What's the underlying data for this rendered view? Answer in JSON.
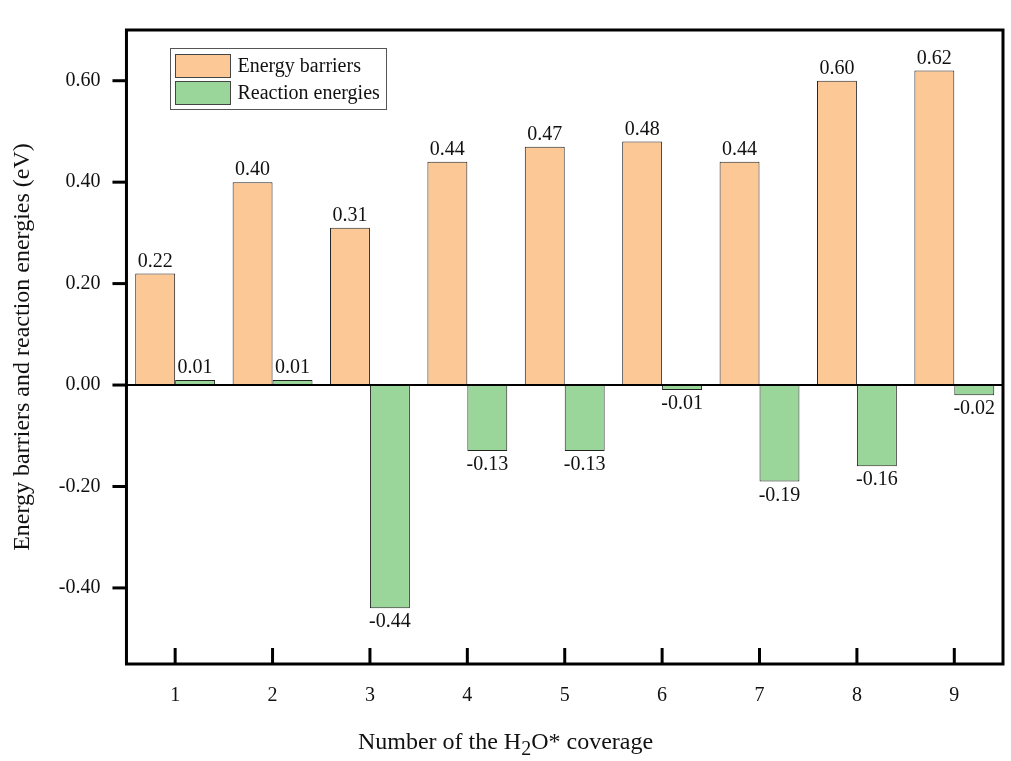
{
  "chart_data": {
    "type": "bar",
    "xlabel": "Number of the H$_{2}$O* coverage",
    "ylabel": "Energy barriers and reaction energies (eV)",
    "categories": [
      "1",
      "2",
      "3",
      "4",
      "5",
      "6",
      "7",
      "8",
      "9"
    ],
    "series": [
      {
        "name": "Energy barriers",
        "color": "#fcc896",
        "values": [
          0.22,
          0.4,
          0.31,
          0.44,
          0.47,
          0.48,
          0.44,
          0.6,
          0.62
        ],
        "value_labels": [
          "0.22",
          "0.40",
          "0.31",
          "0.44",
          "0.47",
          "0.48",
          "0.44",
          "0.60",
          "0.62"
        ]
      },
      {
        "name": "Reaction energies",
        "color": "#9ad69a",
        "values": [
          0.01,
          0.01,
          -0.44,
          -0.13,
          -0.13,
          -0.01,
          -0.19,
          -0.16,
          -0.02
        ],
        "value_labels": [
          "0.01",
          "0.01",
          "-0.44",
          "-0.13",
          "-0.13",
          "-0.01",
          "-0.19",
          "-0.16",
          "-0.02"
        ]
      }
    ],
    "ylim": [
      -0.55,
      0.7
    ],
    "yticks": [
      {
        "value": -0.4,
        "label": "-0.40"
      },
      {
        "value": -0.2,
        "label": "-0.20"
      },
      {
        "value": 0,
        "label": "0.00"
      },
      {
        "value": 0.2,
        "label": "0.20"
      },
      {
        "value": 0.4,
        "label": "0.40"
      },
      {
        "value": 0.6,
        "label": "0.60"
      }
    ],
    "legend": "top left"
  }
}
